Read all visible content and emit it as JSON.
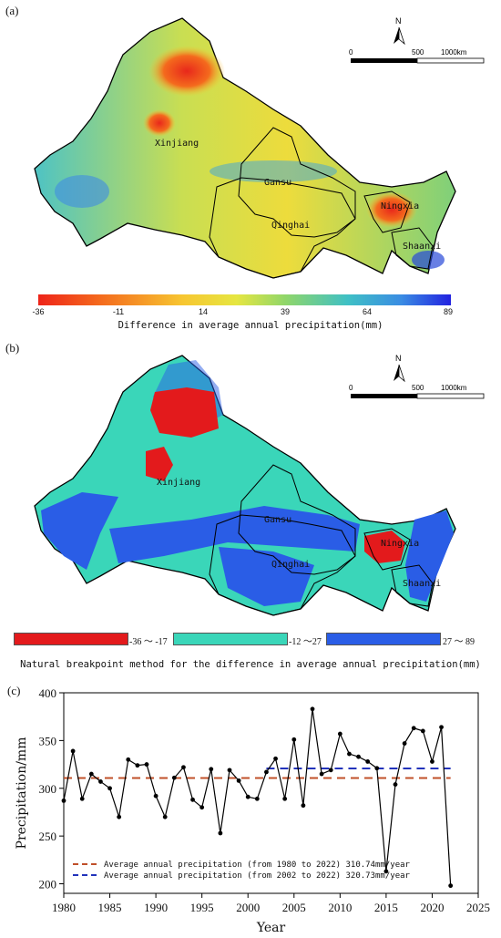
{
  "panel_a": {
    "label": "(a)",
    "regions": [
      "Xinjiang",
      "Gansu",
      "Qinghai",
      "Ningxia",
      "Shaanxi"
    ],
    "north_label": "N",
    "scale_labels": [
      "0",
      "500",
      "1000km"
    ],
    "colorbar_ticks": [
      "-36",
      "-11",
      "14",
      "39",
      "64",
      "89"
    ],
    "colorbar_title": "Difference in average annual precipitation(mm)"
  },
  "panel_b": {
    "label": "(b)",
    "regions": [
      "Xinjiang",
      "Gansu",
      "Qinghai",
      "Ningxia",
      "Shaanxi"
    ],
    "north_label": "N",
    "scale_labels": [
      "0",
      "500",
      "1000km"
    ],
    "classes": [
      {
        "label": "-36 ～ -17",
        "color": "#e31a1c"
      },
      {
        "label": "-12 ～27",
        "color": "#3ad6b9"
      },
      {
        "label": "27  ～ 89",
        "color": "#2a5de6"
      }
    ],
    "legend_title": "Natural breakpoint method for the difference in average annual precipitation(mm)"
  },
  "panel_c": {
    "label": "(c)"
  },
  "chart_data": {
    "type": "line",
    "xlabel": "Year",
    "ylabel": "Precipitation/mm",
    "xlim": [
      1980,
      2025
    ],
    "ylim": [
      190,
      400
    ],
    "xticks": [
      1980,
      1985,
      1990,
      1995,
      2000,
      2005,
      2010,
      2015,
      2020,
      2025
    ],
    "yticks": [
      200,
      250,
      300,
      350,
      400
    ],
    "x": [
      1980,
      1981,
      1982,
      1983,
      1984,
      1985,
      1986,
      1987,
      1988,
      1989,
      1990,
      1991,
      1992,
      1993,
      1994,
      1995,
      1996,
      1997,
      1998,
      1999,
      2000,
      2001,
      2002,
      2003,
      2004,
      2005,
      2006,
      2007,
      2008,
      2009,
      2010,
      2011,
      2012,
      2013,
      2014,
      2015,
      2016,
      2017,
      2018,
      2019,
      2020,
      2021,
      2022
    ],
    "values": [
      287,
      339,
      289,
      315,
      307,
      300,
      270,
      330,
      324,
      325,
      292,
      270,
      311,
      322,
      288,
      280,
      320,
      253,
      319,
      308,
      291,
      289,
      317,
      331,
      289,
      351,
      282,
      383,
      315,
      319,
      357,
      336,
      333,
      328,
      321,
      213,
      304,
      347,
      363,
      360,
      328,
      364,
      198
    ],
    "reference_lines": [
      {
        "name": "Average annual precipitation (from 1980 to 2022) 310.74mm/year",
        "value": 310.74,
        "x_range": [
          1980,
          2022
        ],
        "color": "#c0502a"
      },
      {
        "name": "Average annual precipitation (from 2002 to 2022) 320.73mm/year",
        "value": 320.73,
        "x_range": [
          2002,
          2022
        ],
        "color": "#2233bb"
      }
    ],
    "line_color": "#000000"
  }
}
